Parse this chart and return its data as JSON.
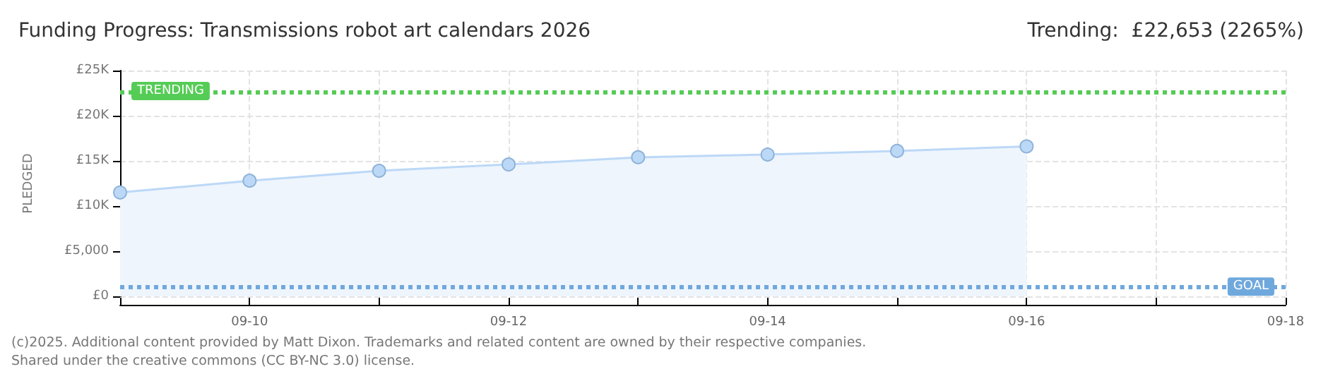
{
  "chart_data": {
    "type": "area",
    "title": "Funding Progress: Transmissions robot art calendars 2026",
    "subtitle": "Trending:  £22,653 (2265%)",
    "ylabel": "PLEDGED",
    "x": [
      "--09-09",
      "--09-10",
      "--09-11",
      "--09-12",
      "--09-13",
      "--09-14",
      "--09-15",
      "--09-16"
    ],
    "series": [
      {
        "color": "#bcd8f7",
        "values": [
          11500,
          12800,
          13900,
          14600,
          15400,
          15700,
          16100,
          16600
        ]
      }
    ],
    "xlim": [
      "--09-09",
      "--09-18"
    ],
    "xticks": [
      {
        "value": "--09-09",
        "label": null
      },
      {
        "value": "--09-10",
        "label": "09-10"
      },
      {
        "value": "--09-11",
        "label": null
      },
      {
        "value": "--09-12",
        "label": "09-12"
      },
      {
        "value": "--09-13",
        "label": null
      },
      {
        "value": "--09-14",
        "label": "09-14"
      },
      {
        "value": "--09-15",
        "label": null
      },
      {
        "value": "--09-16",
        "label": "09-16"
      },
      {
        "value": "--09-17",
        "label": null
      },
      {
        "value": "--09-18",
        "label": "09-18"
      }
    ],
    "ylim": [
      0,
      25000
    ],
    "yticks": [
      {
        "value": 0,
        "label": "£0"
      },
      {
        "value": 5000,
        "label": "£5,000"
      },
      {
        "value": 10000,
        "label": "£10K"
      },
      {
        "value": 15000,
        "label": "£15K"
      },
      {
        "value": 20000,
        "label": "£20K"
      },
      {
        "value": 25000,
        "label": "£25K"
      }
    ],
    "ref_lines": [
      {
        "axis": "y",
        "value": 22653,
        "label": "TRENDING",
        "color": "#55cc55",
        "line_style": "dotted"
      },
      {
        "axis": "y",
        "value": 1000,
        "label": "GOAL",
        "color": "#6fa8dc",
        "line_style": "dotted"
      }
    ],
    "annotations": [
      "(c)2025. Additional content provided by Matt Dixon. Trademarks and related content are owned by their respective companies.",
      "Shared under the creative commons (CC BY-NC 3.0) license."
    ],
    "grid": true,
    "marker": "circle"
  }
}
